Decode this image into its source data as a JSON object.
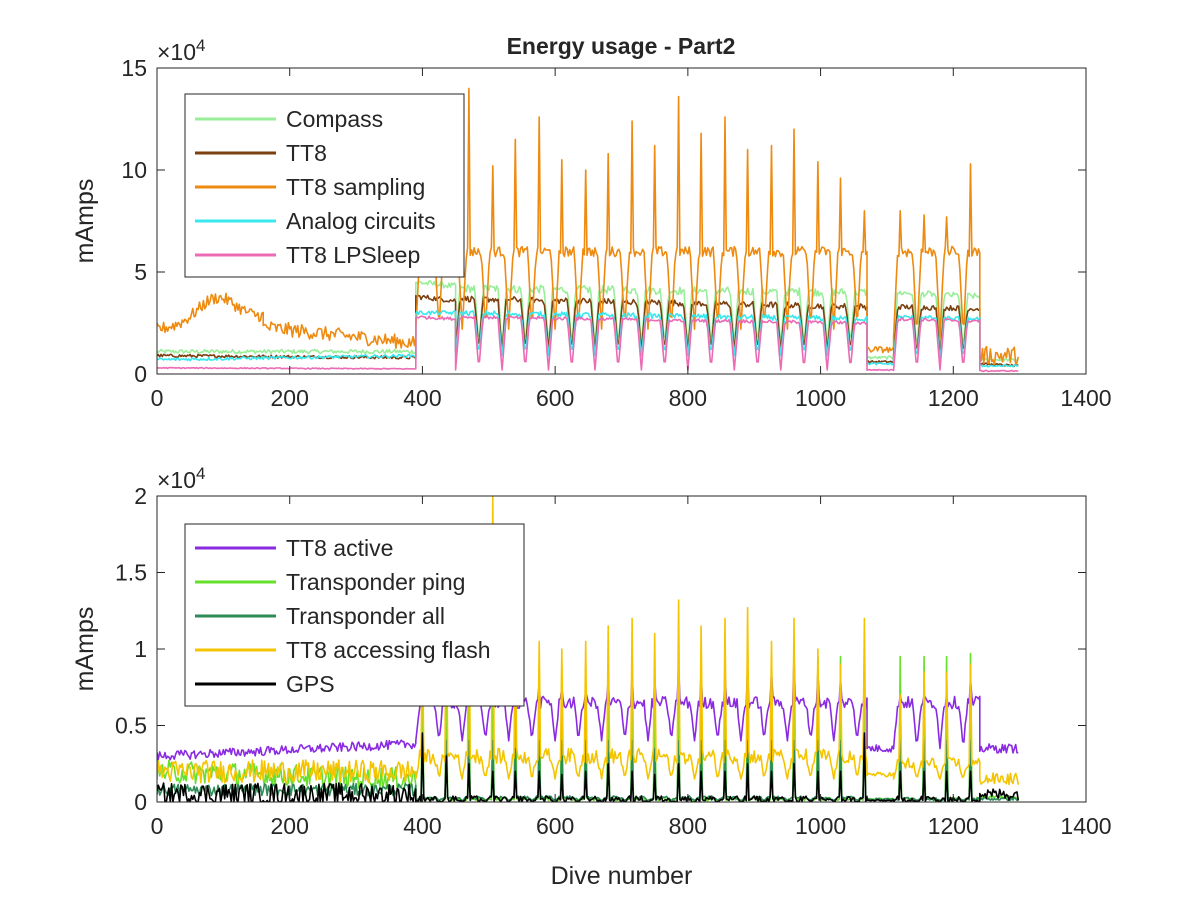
{
  "figure": {
    "title": "Energy usage - Part2"
  },
  "chart_data": [
    {
      "type": "line",
      "title": "Energy usage - Part2",
      "xlabel": "",
      "ylabel": "mAmps",
      "xlim": [
        0,
        1400
      ],
      "ylim": [
        0,
        150000
      ],
      "xticks": [
        0,
        200,
        400,
        600,
        800,
        1000,
        1200,
        1400
      ],
      "yticks": [
        0,
        50000,
        100000,
        150000
      ],
      "ytick_labels": [
        "0",
        "5",
        "10",
        "15"
      ],
      "y_exponent_base": "×10",
      "y_exponent_power": "4",
      "legend_position": "top-left",
      "grid": false,
      "series": [
        {
          "name": "Compass",
          "color": "#99ee99",
          "segments": [
            {
              "x0": 0,
              "x1": 390,
              "start": 11000,
              "end": 11000,
              "amp": 2000,
              "peaks": []
            },
            {
              "x0": 390,
              "x1": 450,
              "start": 45000,
              "end": 43000,
              "amp": 3000,
              "peaks": []
            },
            {
              "x0": 450,
              "x1": 1070,
              "start": 42000,
              "end": 40000,
              "amp": 4000,
              "peaks": [],
              "period": 35,
              "trough": 14000
            },
            {
              "x0": 1070,
              "x1": 1110,
              "start": 8000,
              "end": 8000,
              "amp": 1500,
              "peaks": []
            },
            {
              "x0": 1110,
              "x1": 1240,
              "start": 40000,
              "end": 38000,
              "amp": 3000,
              "peaks": [],
              "period": 35,
              "trough": 12000
            },
            {
              "x0": 1240,
              "x1": 1298,
              "start": 7000,
              "end": 7000,
              "amp": 1500,
              "peaks": []
            }
          ]
        },
        {
          "name": "TT8",
          "color": "#7b3f10",
          "segments": [
            {
              "x0": 0,
              "x1": 390,
              "start": 9000,
              "end": 8000,
              "amp": 1500,
              "peaks": []
            },
            {
              "x0": 390,
              "x1": 450,
              "start": 38000,
              "end": 36000,
              "amp": 2500,
              "peaks": []
            },
            {
              "x0": 450,
              "x1": 1070,
              "start": 37000,
              "end": 33000,
              "amp": 3000,
              "peaks": [],
              "period": 35,
              "trough": 11000
            },
            {
              "x0": 1070,
              "x1": 1110,
              "start": 6000,
              "end": 6000,
              "amp": 1000,
              "peaks": []
            },
            {
              "x0": 1110,
              "x1": 1240,
              "start": 33000,
              "end": 32000,
              "amp": 2500,
              "peaks": [],
              "period": 35,
              "trough": 9000
            },
            {
              "x0": 1240,
              "x1": 1298,
              "start": 5000,
              "end": 4000,
              "amp": 1000,
              "peaks": []
            }
          ]
        },
        {
          "name": "TT8 sampling",
          "color": "#ee8a10",
          "segments": [
            {
              "x0": 0,
              "x1": 160,
              "start": 22000,
              "end": 28000,
              "amp": 6000,
              "peaks": [],
              "bump": 12000,
              "bump_at": 90
            },
            {
              "x0": 160,
              "x1": 390,
              "start": 23000,
              "end": 15000,
              "amp": 7000,
              "peaks": []
            },
            {
              "x0": 390,
              "x1": 1070,
              "start": 60000,
              "end": 60000,
              "amp": 5000,
              "peaks": [
                80000,
                92000,
                140000,
                102000,
                115000,
                126000,
                105000,
                100000,
                108000,
                124000,
                112000,
                136000,
                118000,
                126000,
                110000,
                112000,
                120000,
                104000,
                96000
              ],
              "period": 35,
              "trough": 22000
            },
            {
              "x0": 1070,
              "x1": 1110,
              "start": 12000,
              "end": 12000,
              "amp": 3000,
              "peaks": []
            },
            {
              "x0": 1110,
              "x1": 1240,
              "start": 60000,
              "end": 60000,
              "amp": 5000,
              "peaks": [
                80000,
                78000,
                77000,
                103000
              ],
              "period": 35,
              "trough": 18000
            },
            {
              "x0": 1240,
              "x1": 1298,
              "start": 9000,
              "end": 9000,
              "amp": 9000,
              "peaks": []
            }
          ]
        },
        {
          "name": "Analog circuits",
          "color": "#38e8ee",
          "segments": [
            {
              "x0": 0,
              "x1": 390,
              "start": 7000,
              "end": 9000,
              "amp": 1500,
              "peaks": []
            },
            {
              "x0": 390,
              "x1": 450,
              "start": 30000,
              "end": 30000,
              "amp": 2000,
              "peaks": []
            },
            {
              "x0": 450,
              "x1": 1070,
              "start": 30000,
              "end": 27000,
              "amp": 2500,
              "peaks": [],
              "period": 35,
              "trough": 9000
            },
            {
              "x0": 1070,
              "x1": 1110,
              "start": 5000,
              "end": 5000,
              "amp": 1000,
              "peaks": []
            },
            {
              "x0": 1110,
              "x1": 1240,
              "start": 28000,
              "end": 27000,
              "amp": 2000,
              "peaks": [],
              "period": 35,
              "trough": 7000
            },
            {
              "x0": 1240,
              "x1": 1298,
              "start": 4000,
              "end": 4000,
              "amp": 1000,
              "peaks": []
            }
          ]
        },
        {
          "name": "TT8 LPSleep",
          "color": "#ec6bb5",
          "segments": [
            {
              "x0": 0,
              "x1": 390,
              "start": 3000,
              "end": 2500,
              "amp": 500,
              "peaks": []
            },
            {
              "x0": 390,
              "x1": 450,
              "start": 28000,
              "end": 27000,
              "amp": 1500,
              "peaks": []
            },
            {
              "x0": 450,
              "x1": 1070,
              "start": 28000,
              "end": 25000,
              "amp": 1500,
              "peaks": [],
              "period": 35,
              "trough": 2000
            },
            {
              "x0": 1070,
              "x1": 1110,
              "start": 2000,
              "end": 2000,
              "amp": 500,
              "peaks": []
            },
            {
              "x0": 1110,
              "x1": 1240,
              "start": 27000,
              "end": 26000,
              "amp": 1500,
              "peaks": [],
              "period": 35,
              "trough": 2000
            },
            {
              "x0": 1240,
              "x1": 1298,
              "start": 1500,
              "end": 1500,
              "amp": 500,
              "peaks": []
            }
          ]
        }
      ]
    },
    {
      "type": "line",
      "title": "",
      "xlabel": "Dive number",
      "ylabel": "mAmps",
      "xlim": [
        0,
        1400
      ],
      "ylim": [
        0,
        20000
      ],
      "xticks": [
        0,
        200,
        400,
        600,
        800,
        1000,
        1200,
        1400
      ],
      "yticks": [
        0,
        5000,
        10000,
        15000,
        20000
      ],
      "ytick_labels": [
        "0",
        "0.5",
        "1",
        "1.5",
        "2"
      ],
      "y_exponent_base": "×10",
      "y_exponent_power": "4",
      "legend_position": "top-left",
      "grid": false,
      "series": [
        {
          "name": "TT8 active",
          "color": "#8a2be2",
          "segments": [
            {
              "x0": 0,
              "x1": 390,
              "start": 3000,
              "end": 3800,
              "amp": 600,
              "peaks": []
            },
            {
              "x0": 390,
              "x1": 1070,
              "start": 6500,
              "end": 6500,
              "amp": 800,
              "peaks": [
                7000,
                8000,
                8500,
                8000,
                7500,
                7800,
                7500,
                7200,
                8000,
                8500,
                8000,
                9000,
                8500,
                8500,
                9000,
                8500,
                9500,
                8500,
                8000
              ],
              "period": 35,
              "trough": 4000
            },
            {
              "x0": 1070,
              "x1": 1110,
              "start": 3500,
              "end": 3500,
              "amp": 500,
              "peaks": []
            },
            {
              "x0": 1110,
              "x1": 1240,
              "start": 6500,
              "end": 6500,
              "amp": 800,
              "peaks": [
                7000,
                7000,
                7000,
                8000
              ],
              "period": 35,
              "trough": 3500
            },
            {
              "x0": 1240,
              "x1": 1298,
              "start": 3500,
              "end": 3500,
              "amp": 600,
              "peaks": []
            }
          ]
        },
        {
          "name": "Transponder ping",
          "color": "#66e02a",
          "segments": [
            {
              "x0": 0,
              "x1": 390,
              "start": 2000,
              "end": 1500,
              "amp": 1500,
              "peaks": []
            },
            {
              "x0": 390,
              "x1": 1070,
              "start": 200,
              "end": 200,
              "amp": 200,
              "peaks": [
                9500,
                9500,
                9000,
                9500,
                8500,
                9000,
                8500,
                9000,
                9500,
                9000,
                8500,
                9000,
                8500,
                9500,
                9000,
                9500,
                9000,
                9500,
                9500
              ],
              "period": 35,
              "trough": 100
            },
            {
              "x0": 1070,
              "x1": 1110,
              "start": 200,
              "end": 200,
              "amp": 100,
              "peaks": []
            },
            {
              "x0": 1110,
              "x1": 1240,
              "start": 200,
              "end": 200,
              "amp": 200,
              "peaks": [
                9500,
                9500,
                9500,
                9700
              ],
              "period": 35,
              "trough": 100
            },
            {
              "x0": 1240,
              "x1": 1298,
              "start": 300,
              "end": 300,
              "amp": 200,
              "peaks": []
            }
          ]
        },
        {
          "name": "Transponder all",
          "color": "#2e8b57",
          "segments": [
            {
              "x0": 0,
              "x1": 390,
              "start": 800,
              "end": 800,
              "amp": 800,
              "peaks": []
            },
            {
              "x0": 390,
              "x1": 1070,
              "start": 300,
              "end": 300,
              "amp": 200,
              "peaks": [
                4000,
                4000,
                4000,
                4000,
                3500,
                4000,
                4000,
                4000,
                4000,
                4000,
                3500,
                4000,
                4000,
                4000,
                4000,
                4000,
                4000,
                4000,
                4000
              ],
              "period": 35,
              "trough": 100
            },
            {
              "x0": 1070,
              "x1": 1110,
              "start": 200,
              "end": 200,
              "amp": 100,
              "peaks": []
            },
            {
              "x0": 1110,
              "x1": 1240,
              "start": 200,
              "end": 200,
              "amp": 200,
              "peaks": [
                4000,
                4000,
                4000,
                4000
              ],
              "period": 35,
              "trough": 100
            },
            {
              "x0": 1240,
              "x1": 1298,
              "start": 200,
              "end": 200,
              "amp": 200,
              "peaks": []
            }
          ]
        },
        {
          "name": "TT8 accessing flash",
          "color": "#f5c400",
          "segments": [
            {
              "x0": 0,
              "x1": 390,
              "start": 2000,
              "end": 2000,
              "amp": 1500,
              "peaks": []
            },
            {
              "x0": 390,
              "x1": 1070,
              "start": 3000,
              "end": 3000,
              "amp": 1000,
              "peaks": [
                12000,
                18000,
                18000,
                20000,
                11000,
                10500,
                10000,
                10500,
                11500,
                12000,
                11000,
                13200,
                11500,
                12000,
                12700,
                10500,
                12000,
                10000,
                9000
              ],
              "period": 35,
              "trough": 1500
            },
            {
              "x0": 1070,
              "x1": 1110,
              "start": 1800,
              "end": 1800,
              "amp": 300,
              "peaks": []
            },
            {
              "x0": 1110,
              "x1": 1240,
              "start": 2500,
              "end": 2500,
              "amp": 800,
              "peaks": [
                7000,
                8500,
                8500,
                9000
              ],
              "period": 35,
              "trough": 1500
            },
            {
              "x0": 1240,
              "x1": 1298,
              "start": 1500,
              "end": 1500,
              "amp": 800,
              "peaks": []
            }
          ]
        },
        {
          "name": "GPS",
          "color": "#000000",
          "segments": [
            {
              "x0": 0,
              "x1": 390,
              "start": 500,
              "end": 500,
              "amp": 1500,
              "peaks": []
            },
            {
              "x0": 390,
              "x1": 1070,
              "start": 200,
              "end": 200,
              "amp": 400,
              "peaks": [
                4500,
                3000,
                2500,
                2000,
                2000,
                2000,
                1800,
                2000,
                2500,
                2000,
                1800,
                2500,
                2000,
                2000,
                2500,
                2000,
                2500,
                2000,
                2000
              ],
              "period": 35,
              "trough": 0
            },
            {
              "x0": 1070,
              "x1": 1110,
              "start": 100,
              "end": 100,
              "amp": 100,
              "peaks": []
            },
            {
              "x0": 1110,
              "x1": 1240,
              "start": 200,
              "end": 200,
              "amp": 400,
              "peaks": [
                2000,
                2000,
                2000,
                2000
              ],
              "period": 35,
              "trough": 0
            },
            {
              "x0": 1240,
              "x1": 1298,
              "start": 500,
              "end": 500,
              "amp": 800,
              "peaks": []
            }
          ]
        }
      ]
    }
  ]
}
